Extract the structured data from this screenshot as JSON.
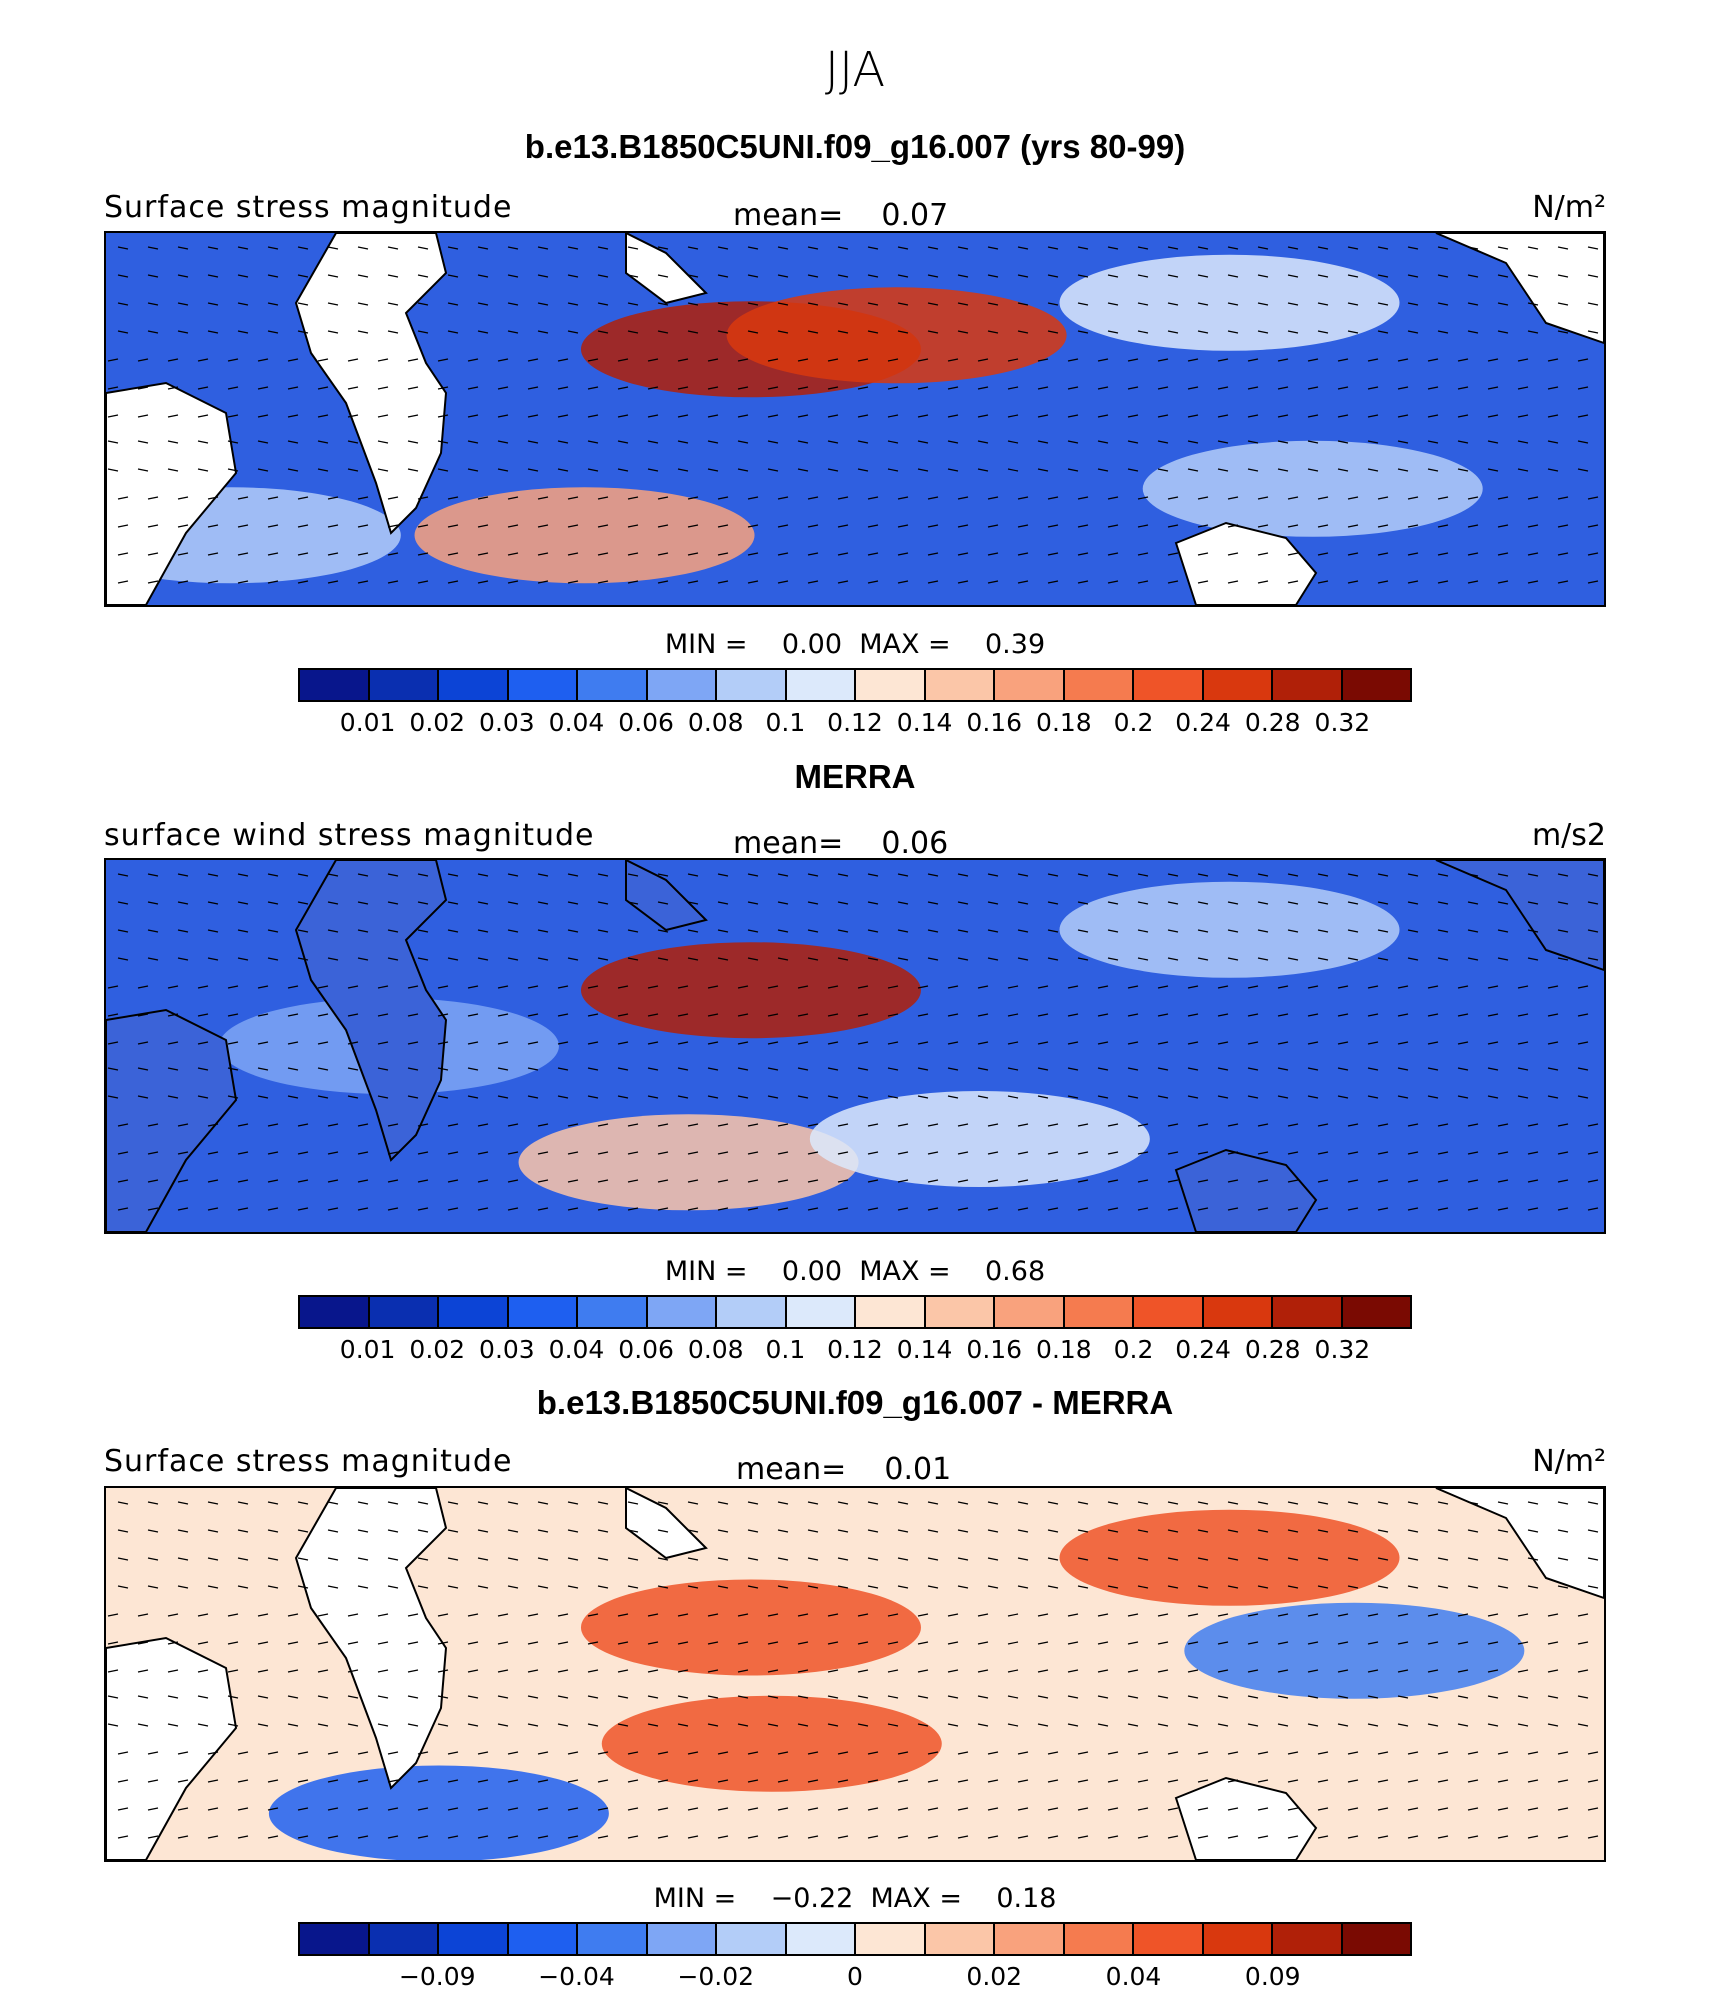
{
  "figure": {
    "season": "JJA"
  },
  "panels": [
    {
      "title": "b.e13.B1850C5UNI.f09_g16.007 (yrs 80-99)",
      "variable": "Surface stress magnitude",
      "mean_label": "mean=",
      "mean_value": "0.07",
      "units": "N/m²",
      "min_label": "MIN =",
      "min_value": "0.00",
      "max_label": "MAX =",
      "max_value": "0.39",
      "colorbar_colors": [
        "#08168c",
        "#0a2fb0",
        "#0c44d6",
        "#1e5ff0",
        "#3f7cf0",
        "#7ea6f5",
        "#b3cdf8",
        "#dce9fb",
        "#fde6d4",
        "#fbc6a8",
        "#f9a27d",
        "#f57b4f",
        "#ef5428",
        "#d9380e",
        "#b02008",
        "#7a0a02"
      ],
      "colorbar_ticks": [
        "0.01",
        "0.02",
        "0.03",
        "0.04",
        "0.06",
        "0.08",
        "0.1",
        "0.12",
        "0.14",
        "0.16",
        "0.18",
        "0.2",
        "0.24",
        "0.28",
        "0.32"
      ],
      "colorbar_tick_boundaries": [
        1,
        2,
        3,
        4,
        5,
        6,
        7,
        8,
        9,
        10,
        11,
        12,
        13,
        14,
        15
      ],
      "background": "#2f5fe0",
      "features": [
        {
          "lon": 95,
          "lat": 15,
          "value": 0.3
        },
        {
          "lon": 130,
          "lat": 18,
          "value": 0.25
        },
        {
          "lon": 55,
          "lat": -25,
          "value": 0.18
        },
        {
          "lon": 330,
          "lat": -25,
          "value": 0.1
        },
        {
          "lon": 210,
          "lat": 25,
          "value": 0.11
        },
        {
          "lon": 230,
          "lat": -15,
          "value": 0.1
        }
      ]
    },
    {
      "title": "MERRA",
      "variable": "surface wind stress magnitude",
      "mean_label": "mean=",
      "mean_value": "0.06",
      "units": "m/s2",
      "min_label": "MIN =",
      "min_value": "0.00",
      "max_label": "MAX =",
      "max_value": "0.68",
      "colorbar_colors": [
        "#08168c",
        "#0a2fb0",
        "#0c44d6",
        "#1e5ff0",
        "#3f7cf0",
        "#7ea6f5",
        "#b3cdf8",
        "#dce9fb",
        "#fde6d4",
        "#fbc6a8",
        "#f9a27d",
        "#f57b4f",
        "#ef5428",
        "#d9380e",
        "#b02008",
        "#7a0a02"
      ],
      "colorbar_ticks": [
        "0.01",
        "0.02",
        "0.03",
        "0.04",
        "0.06",
        "0.08",
        "0.1",
        "0.12",
        "0.14",
        "0.16",
        "0.18",
        "0.2",
        "0.24",
        "0.28",
        "0.32"
      ],
      "colorbar_tick_boundaries": [
        1,
        2,
        3,
        4,
        5,
        6,
        7,
        8,
        9,
        10,
        11,
        12,
        13,
        14,
        15
      ],
      "background": "#2f5fe0",
      "features": [
        {
          "lon": 95,
          "lat": 12,
          "value": 0.3
        },
        {
          "lon": 80,
          "lat": -25,
          "value": 0.15
        },
        {
          "lon": 8,
          "lat": 0,
          "value": 0.08
        },
        {
          "lon": 150,
          "lat": -20,
          "value": 0.12
        },
        {
          "lon": 210,
          "lat": 25,
          "value": 0.1
        }
      ]
    },
    {
      "title": "b.e13.B1850C5UNI.f09_g16.007 - MERRA",
      "variable": "Surface stress magnitude",
      "mean_label": "mean=",
      "mean_value": "0.01",
      "units": "N/m²",
      "min_label": "MIN =",
      "min_value": "−0.22",
      "max_label": "MAX =",
      "max_value": "0.18",
      "colorbar_colors": [
        "#08168c",
        "#0a2fb0",
        "#0c44d6",
        "#1e5ff0",
        "#3f7cf0",
        "#7ea6f5",
        "#b3cdf8",
        "#dce9fb",
        "#fde6d4",
        "#fbc6a8",
        "#f9a27d",
        "#f57b4f",
        "#ef5428",
        "#d9380e",
        "#b02008",
        "#7a0a02"
      ],
      "colorbar_ticks": [
        "−0.09",
        "−0.04",
        "−0.02",
        "0",
        "0.02",
        "0.04",
        "0.09"
      ],
      "colorbar_tick_boundaries": [
        2,
        4,
        6,
        8,
        10,
        12,
        14
      ],
      "background": "#fde6d4",
      "features": [
        {
          "lon": 95,
          "lat": 10,
          "value": 0.06
        },
        {
          "lon": 210,
          "lat": 25,
          "value": 0.05
        },
        {
          "lon": 100,
          "lat": -15,
          "value": 0.05
        },
        {
          "lon": 240,
          "lat": 5,
          "value": -0.03
        },
        {
          "lon": 20,
          "lat": -30,
          "value": -0.04
        }
      ]
    }
  ]
}
